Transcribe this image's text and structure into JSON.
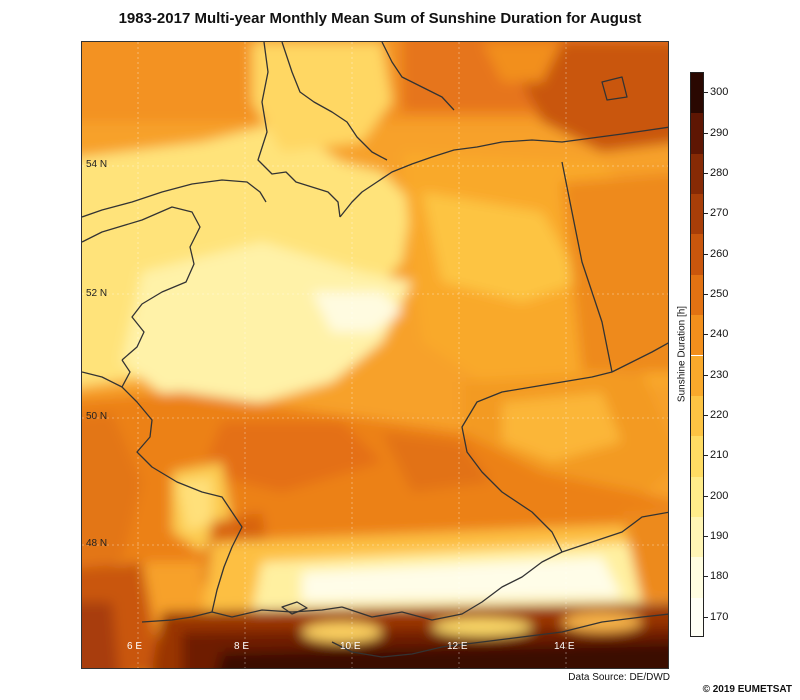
{
  "title": "1983-2017 Multi-year Monthly Mean Sum of Sunshine Duration for August",
  "latitude_labels": [
    "54 N",
    "52 N",
    "50 N",
    "48 N"
  ],
  "longitude_labels": [
    "6 E",
    "8 E",
    "10 E",
    "12 E",
    "14 E"
  ],
  "colorbar": {
    "title": "Sunshine Duration [h]",
    "ticks": [
      "300",
      "290",
      "280",
      "270",
      "260",
      "250",
      "240",
      "230",
      "220",
      "210",
      "200",
      "190",
      "180",
      "170"
    ],
    "min": 165,
    "max": 305,
    "colors": [
      {
        "from": 165,
        "to": 175,
        "color": "#fffff6"
      },
      {
        "from": 175,
        "to": 185,
        "color": "#fffde0"
      },
      {
        "from": 185,
        "to": 195,
        "color": "#fff5b5"
      },
      {
        "from": 195,
        "to": 205,
        "color": "#ffec8a"
      },
      {
        "from": 205,
        "to": 215,
        "color": "#ffdc63"
      },
      {
        "from": 215,
        "to": 225,
        "color": "#fdc443"
      },
      {
        "from": 225,
        "to": 235,
        "color": "#f9a92b"
      },
      {
        "from": 235,
        "to": 245,
        "color": "#f28f1c"
      },
      {
        "from": 245,
        "to": 255,
        "color": "#e27212"
      },
      {
        "from": 255,
        "to": 265,
        "color": "#c9560c"
      },
      {
        "from": 265,
        "to": 275,
        "color": "#a83e08"
      },
      {
        "from": 275,
        "to": 285,
        "color": "#862a05"
      },
      {
        "from": 285,
        "to": 295,
        "color": "#5e1603"
      },
      {
        "from": 295,
        "to": 305,
        "color": "#2a0801"
      }
    ]
  },
  "source": "Data Source: DE/DWD",
  "copyright": "© 2019 EUMETSAT"
}
